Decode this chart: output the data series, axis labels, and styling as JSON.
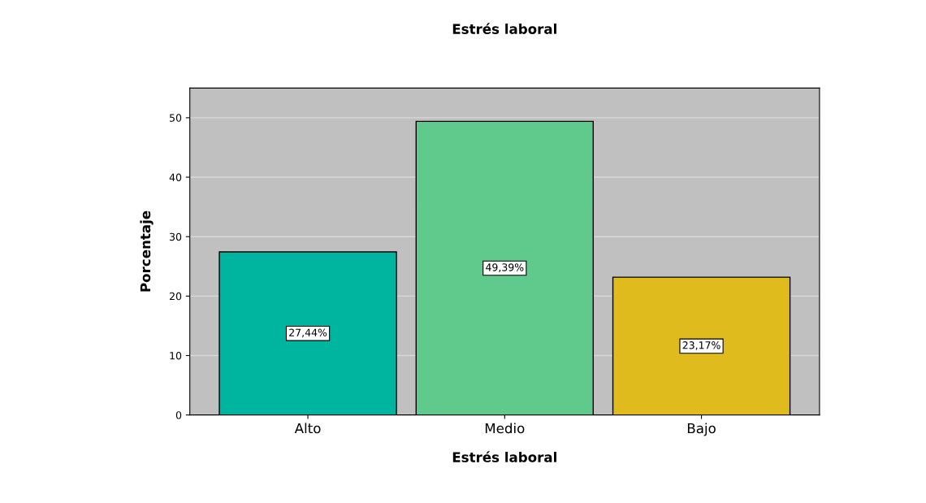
{
  "chart_data": {
    "type": "bar",
    "title": "Estrés laboral",
    "xlabel": "Estrés laboral",
    "ylabel": "Porcentaje",
    "categories": [
      "Alto",
      "Medio",
      "Bajo"
    ],
    "values": [
      27.44,
      49.39,
      23.17
    ],
    "colors": [
      "#00b5a0",
      "#5fca8b",
      "#e0bb1e"
    ],
    "value_labels": [
      "27,44%",
      "49,39%",
      "23,17%"
    ],
    "ylim": [
      0,
      55
    ],
    "yticks": [
      0,
      10,
      20,
      30,
      40,
      50
    ],
    "grid": "y"
  }
}
